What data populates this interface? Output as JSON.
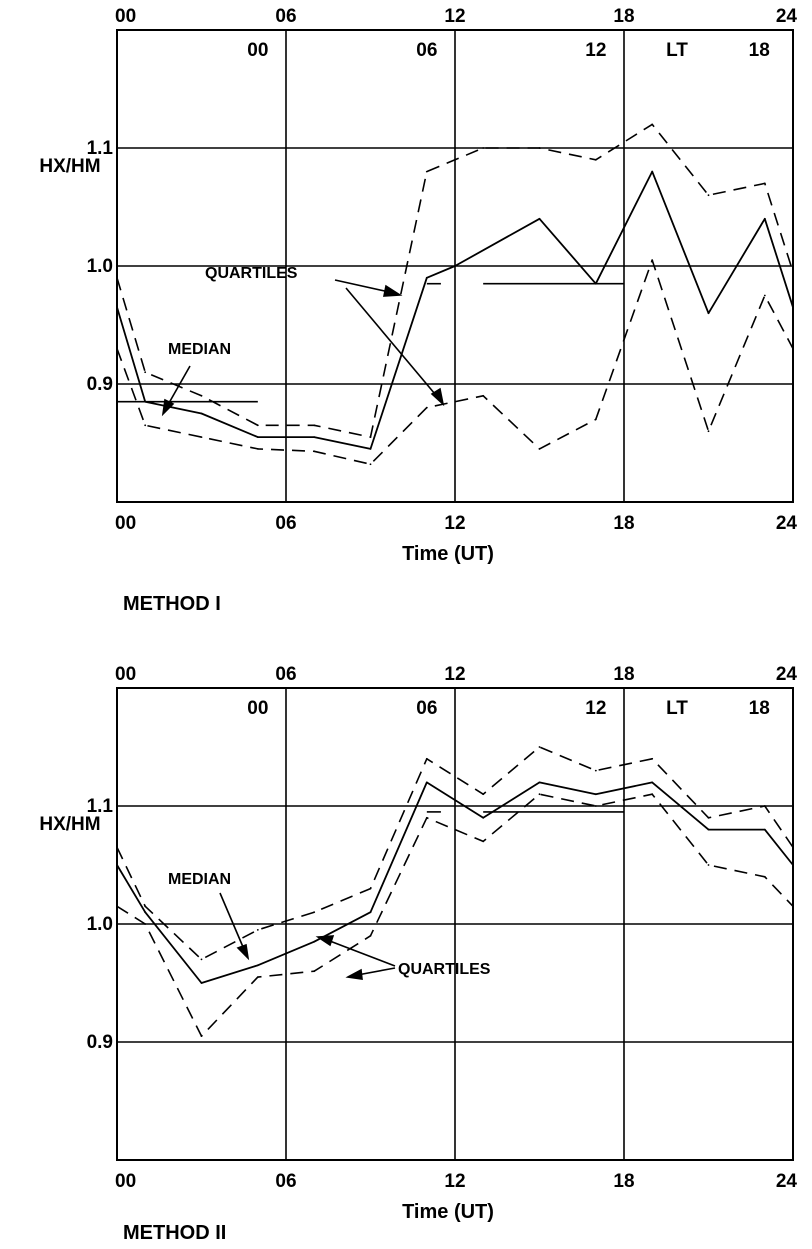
{
  "chart_data": [
    {
      "type": "line",
      "title": "METHOD I",
      "xlabel": "Time (UT)",
      "ylabel": "HX/HM",
      "xlim": [
        0,
        24
      ],
      "ylim": [
        0.8,
        1.2
      ],
      "x_ticks_bottom": [
        "00",
        "06",
        "12",
        "18",
        "24"
      ],
      "x_ticks_top": [
        "00",
        "06",
        "12",
        "18",
        "24"
      ],
      "lt_ticks": [
        "00",
        "06",
        "12",
        "18"
      ],
      "lt_label": "LT",
      "y_ticks": [
        "0.9",
        "1.0",
        "1.1"
      ],
      "grid": true,
      "series": [
        {
          "name": "MEDIAN",
          "style": "solid",
          "x": [
            0,
            1,
            3,
            5,
            7,
            9,
            11,
            12,
            15,
            17,
            19,
            21,
            23,
            24
          ],
          "y": [
            0.965,
            0.885,
            0.875,
            0.855,
            0.855,
            0.845,
            0.99,
            1.0,
            1.04,
            0.985,
            1.08,
            0.96,
            1.04,
            0.965
          ]
        },
        {
          "name": "QUARTILES",
          "style": "dashed",
          "x": [
            0,
            1,
            3,
            5,
            7,
            9,
            11,
            12,
            13,
            15,
            17,
            19,
            21,
            23,
            24
          ],
          "y": [
            0.99,
            0.91,
            0.89,
            0.865,
            0.865,
            0.855,
            1.08,
            1.09,
            1.1,
            1.1,
            1.09,
            1.12,
            1.06,
            1.07,
            0.995
          ]
        },
        {
          "name": "QUARTILES",
          "style": "dashed",
          "x": [
            0,
            1,
            3,
            5,
            7,
            9,
            11,
            13,
            15,
            17,
            19,
            21,
            23,
            24
          ],
          "y": [
            0.93,
            0.865,
            0.855,
            0.845,
            0.843,
            0.832,
            0.88,
            0.89,
            0.845,
            0.87,
            1.005,
            0.86,
            0.975,
            0.93
          ]
        }
      ],
      "reference_segments": [
        {
          "x": [
            0,
            5
          ],
          "y": 0.885
        },
        {
          "x": [
            11,
            11.5
          ],
          "y": 0.985
        },
        {
          "x": [
            13,
            18
          ],
          "y": 0.985
        }
      ],
      "annotations": [
        "QUARTILES",
        "MEDIAN"
      ]
    },
    {
      "type": "line",
      "title": "METHOD II",
      "xlabel": "Time (UT)",
      "ylabel": "HX/HM",
      "xlim": [
        0,
        24
      ],
      "ylim": [
        0.8,
        1.2
      ],
      "x_ticks_bottom": [
        "00",
        "06",
        "12",
        "18",
        "24"
      ],
      "x_ticks_top": [
        "00",
        "06",
        "12",
        "18",
        "24"
      ],
      "lt_ticks": [
        "00",
        "06",
        "12",
        "18"
      ],
      "lt_label": "LT",
      "y_ticks": [
        "0.9",
        "1.0",
        "1.1"
      ],
      "grid": true,
      "series": [
        {
          "name": "MEDIAN",
          "style": "solid",
          "x": [
            0,
            1,
            3,
            5,
            7,
            9,
            11,
            13,
            15,
            17,
            19,
            21,
            23,
            24
          ],
          "y": [
            1.05,
            1.01,
            0.95,
            0.965,
            0.985,
            1.01,
            1.12,
            1.09,
            1.12,
            1.11,
            1.12,
            1.08,
            1.08,
            1.05
          ]
        },
        {
          "name": "QUARTILES",
          "style": "dashed",
          "x": [
            0,
            1,
            3,
            5,
            7,
            9,
            11,
            13,
            15,
            17,
            19,
            21,
            23,
            24
          ],
          "y": [
            1.065,
            1.015,
            0.97,
            0.995,
            1.01,
            1.03,
            1.14,
            1.11,
            1.15,
            1.13,
            1.14,
            1.09,
            1.1,
            1.065
          ]
        },
        {
          "name": "QUARTILES",
          "style": "dashed",
          "x": [
            0,
            1,
            3,
            5,
            7,
            9,
            11,
            13,
            15,
            17,
            19,
            21,
            23,
            24
          ],
          "y": [
            1.015,
            1.0,
            0.905,
            0.955,
            0.96,
            0.99,
            1.09,
            1.07,
            1.11,
            1.1,
            1.11,
            1.05,
            1.04,
            1.015
          ]
        }
      ],
      "reference_segments": [
        {
          "x": [
            11,
            11.5
          ],
          "y": 1.095
        },
        {
          "x": [
            13,
            18
          ],
          "y": 1.095
        }
      ],
      "annotations": [
        "MEDIAN",
        "QUARTILES"
      ]
    }
  ]
}
